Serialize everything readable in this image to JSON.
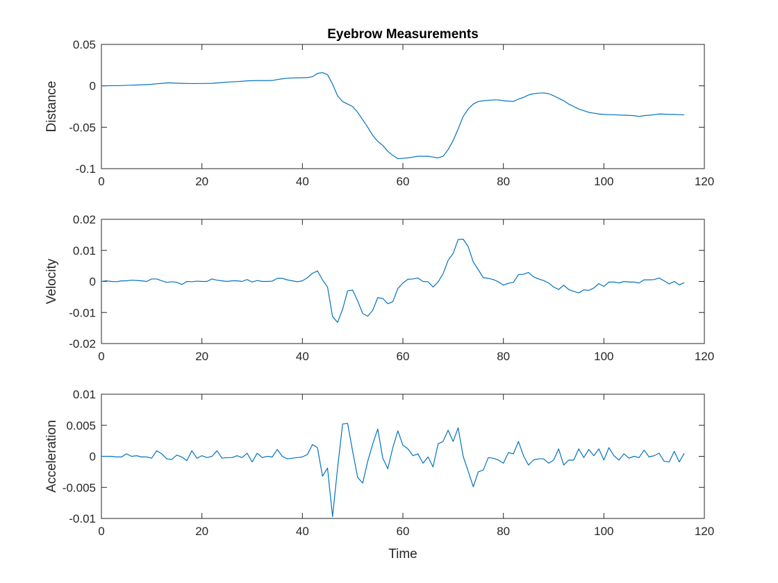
{
  "chart_data": [
    {
      "type": "line",
      "title": "Eyebrow Measurements",
      "xlabel": "",
      "ylabel": "Distance",
      "xlim": [
        0,
        120
      ],
      "ylim": [
        -0.1,
        0.05
      ],
      "xticks": [
        0,
        20,
        40,
        60,
        80,
        100,
        120
      ],
      "yticks": [
        -0.1,
        -0.05,
        0,
        0.05
      ],
      "xtick_labels": [
        "0",
        "20",
        "40",
        "60",
        "80",
        "100",
        "120"
      ],
      "ytick_labels": [
        "-0.1",
        "-0.05",
        "0",
        "0.05"
      ],
      "grid": false,
      "color": "#0072BD",
      "series": [
        {
          "x": [
            0,
            1,
            2,
            3,
            4,
            5,
            6,
            7,
            8,
            9,
            10,
            11,
            12,
            13,
            14,
            15,
            16,
            17,
            18,
            19,
            20,
            21,
            22,
            23,
            24,
            25,
            26,
            27,
            28,
            29,
            30,
            31,
            32,
            33,
            34,
            35,
            36,
            37,
            38,
            39,
            40,
            41,
            42,
            43,
            44,
            45,
            46,
            47,
            48,
            49,
            50,
            51,
            52,
            53,
            54,
            55,
            56,
            57,
            58,
            59,
            60,
            61,
            62,
            63,
            64,
            65,
            66,
            67,
            68,
            69,
            70,
            71,
            72,
            73,
            74,
            75,
            76,
            77,
            78,
            79,
            80,
            81,
            82,
            83,
            84,
            85,
            86,
            87,
            88,
            89,
            90,
            91,
            92,
            93,
            94,
            95,
            96,
            97,
            98,
            99,
            100,
            101,
            102,
            103,
            104,
            105,
            106,
            107,
            108,
            109,
            110,
            111,
            112,
            113,
            114,
            115,
            116
          ],
          "y": [
            0,
            0.0001,
            0.0002,
            0.0002,
            0.0003,
            0.0006,
            0.0008,
            0.001,
            0.0012,
            0.0015,
            0.0018,
            0.0025,
            0.003,
            0.0035,
            0.0035,
            0.0032,
            0.003,
            0.0028,
            0.0027,
            0.0028,
            0.0028,
            0.0029,
            0.003,
            0.0035,
            0.004,
            0.0045,
            0.0048,
            0.005,
            0.0055,
            0.006,
            0.0062,
            0.0063,
            0.0063,
            0.0063,
            0.0065,
            0.0075,
            0.0085,
            0.0092,
            0.0095,
            0.0097,
            0.0098,
            0.01,
            0.011,
            0.015,
            0.016,
            0.0135,
            0.002,
            -0.012,
            -0.019,
            -0.022,
            -0.025,
            -0.032,
            -0.041,
            -0.05,
            -0.06,
            -0.067,
            -0.072,
            -0.079,
            -0.084,
            -0.088,
            -0.0875,
            -0.087,
            -0.086,
            -0.085,
            -0.085,
            -0.085,
            -0.086,
            -0.087,
            -0.085,
            -0.077,
            -0.066,
            -0.052,
            -0.037,
            -0.028,
            -0.022,
            -0.019,
            -0.018,
            -0.0175,
            -0.017,
            -0.017,
            -0.018,
            -0.0185,
            -0.0188,
            -0.016,
            -0.014,
            -0.011,
            -0.0095,
            -0.0088,
            -0.0085,
            -0.0095,
            -0.012,
            -0.015,
            -0.018,
            -0.022,
            -0.025,
            -0.028,
            -0.03,
            -0.032,
            -0.033,
            -0.034,
            -0.0345,
            -0.0348,
            -0.035,
            -0.0352,
            -0.0355,
            -0.0357,
            -0.036,
            -0.037,
            -0.036,
            -0.0355,
            -0.0348,
            -0.034,
            -0.0342,
            -0.0345,
            -0.0345,
            -0.0348,
            -0.035
          ]
        }
      ]
    },
    {
      "type": "line",
      "title": "",
      "xlabel": "",
      "ylabel": "Velocity",
      "xlim": [
        0,
        120
      ],
      "ylim": [
        -0.02,
        0.02
      ],
      "xticks": [
        0,
        20,
        40,
        60,
        80,
        100,
        120
      ],
      "yticks": [
        -0.02,
        -0.01,
        0,
        0.01,
        0.02
      ],
      "xtick_labels": [
        "0",
        "20",
        "40",
        "60",
        "80",
        "100",
        "120"
      ],
      "ytick_labels": [
        "-0.02",
        "-0.01",
        "0",
        "0.01",
        "0.02"
      ],
      "grid": false,
      "color": "#0072BD",
      "series": [
        {
          "x": [
            0,
            1,
            2,
            3,
            4,
            5,
            6,
            7,
            8,
            9,
            10,
            11,
            12,
            13,
            14,
            15,
            16,
            17,
            18,
            19,
            20,
            21,
            22,
            23,
            24,
            25,
            26,
            27,
            28,
            29,
            30,
            31,
            32,
            33,
            34,
            35,
            36,
            37,
            38,
            39,
            40,
            41,
            42,
            43,
            44,
            45,
            46,
            47,
            48,
            49,
            50,
            51,
            52,
            53,
            54,
            55,
            56,
            57,
            58,
            59,
            60,
            61,
            62,
            63,
            64,
            65,
            66,
            67,
            68,
            69,
            70,
            71,
            72,
            73,
            74,
            75,
            76,
            77,
            78,
            79,
            80,
            81,
            82,
            83,
            84,
            85,
            86,
            87,
            88,
            89,
            90,
            91,
            92,
            93,
            94,
            95,
            96,
            97,
            98,
            99,
            100,
            101,
            102,
            103,
            104,
            105,
            106,
            107,
            108,
            109,
            110,
            111,
            112,
            113,
            114,
            115,
            116
          ],
          "y": [
            0,
            0.0002,
            0,
            -0.0001,
            0.0002,
            0.0002,
            0.0004,
            0.0003,
            0.0002,
            0,
            0.0008,
            0.0008,
            0.0002,
            -0.0003,
            -0.0001,
            -0.0003,
            -0.001,
            0,
            -0.0001,
            0.0001,
            0,
            0,
            0.0008,
            0.0004,
            0.0002,
            0,
            0.0002,
            0.0002,
            0,
            0.0006,
            -0.0002,
            0.0003,
            0,
            0,
            0.0001,
            0.001,
            0.001,
            0.0005,
            0.0002,
            -0.0001,
            0.0002,
            0.0012,
            0.0026,
            0.0034,
            0.0005,
            -0.0018,
            -0.0113,
            -0.0132,
            -0.009,
            -0.003,
            -0.0028,
            -0.0063,
            -0.0103,
            -0.0112,
            -0.0093,
            -0.0052,
            -0.0055,
            -0.0072,
            -0.0065,
            -0.0023,
            -0.0005,
            0.0007,
            0.0008,
            0.0011,
            0,
            -0.0001,
            -0.0018,
            -0.0002,
            0.0025,
            0.0068,
            0.009,
            0.0135,
            0.0136,
            0.0112,
            0.0063,
            0.0038,
            0.0012,
            0.001,
            0.0006,
            -0.0001,
            -0.0012,
            -0.0006,
            -0.0003,
            0.0022,
            0.0023,
            0.0029,
            0.0015,
            0.0008,
            0.0003,
            -0.0005,
            -0.0018,
            -0.0026,
            -0.0012,
            -0.0026,
            -0.0032,
            -0.0037,
            -0.0027,
            -0.0029,
            -0.0021,
            -0.0007,
            -0.0016,
            -0.0002,
            -0.0002,
            -0.0005,
            0,
            -0.0002,
            -0.0002,
            -0.0005,
            0.0005,
            0.0005,
            0.0006,
            0.0011,
            0.0002,
            -0.0008,
            0,
            -0.0011,
            -0.0004
          ]
        }
      ]
    },
    {
      "type": "line",
      "title": "",
      "xlabel": "Time",
      "ylabel": "Acceleration",
      "xlim": [
        0,
        120
      ],
      "ylim": [
        -0.01,
        0.01
      ],
      "xticks": [
        0,
        20,
        40,
        60,
        80,
        100,
        120
      ],
      "yticks": [
        -0.01,
        -0.005,
        0,
        0.005,
        0.01
      ],
      "xtick_labels": [
        "0",
        "20",
        "40",
        "60",
        "80",
        "100",
        "120"
      ],
      "ytick_labels": [
        "-0.01",
        "-0.005",
        "0",
        "0.005",
        "0.01"
      ],
      "grid": false,
      "color": "#0072BD",
      "series": [
        {
          "x": [
            0,
            1,
            2,
            3,
            4,
            5,
            6,
            7,
            8,
            9,
            10,
            11,
            12,
            13,
            14,
            15,
            16,
            17,
            18,
            19,
            20,
            21,
            22,
            23,
            24,
            25,
            26,
            27,
            28,
            29,
            30,
            31,
            32,
            33,
            34,
            35,
            36,
            37,
            38,
            39,
            40,
            41,
            42,
            43,
            44,
            45,
            46,
            47,
            48,
            49,
            50,
            51,
            52,
            53,
            54,
            55,
            56,
            57,
            58,
            59,
            60,
            61,
            62,
            63,
            64,
            65,
            66,
            67,
            68,
            69,
            70,
            71,
            72,
            73,
            74,
            75,
            76,
            77,
            78,
            79,
            80,
            81,
            82,
            83,
            84,
            85,
            86,
            87,
            88,
            89,
            90,
            91,
            92,
            93,
            94,
            95,
            96,
            97,
            98,
            99,
            100,
            101,
            102,
            103,
            104,
            105,
            106,
            107,
            108,
            109,
            110,
            111,
            112,
            113,
            114,
            115,
            116
          ],
          "y": [
            0,
            0,
            0,
            -0.0001,
            -0.0001,
            0.0004,
            0,
            0.0001,
            -0.0001,
            -0.0001,
            -0.0003,
            0.0009,
            0.0004,
            -0.0004,
            -0.0005,
            0.0002,
            -0.0001,
            -0.0007,
            0.0009,
            -0.0003,
            0.0001,
            -0.0002,
            0,
            0.0009,
            -0.0003,
            -0.0002,
            -0.0002,
            0.0001,
            -0.0002,
            0.0005,
            -0.0009,
            0.0005,
            -0.0002,
            0,
            -0.0001,
            0.0011,
            0,
            -0.0004,
            -0.0003,
            -0.0002,
            -0.0001,
            0.0003,
            0.0019,
            0.0014,
            -0.0032,
            -0.0019,
            -0.0097,
            -0.0019,
            0.0052,
            0.0053,
            0.0008,
            -0.0034,
            -0.0043,
            -0.0008,
            0.002,
            0.0044,
            -0.0003,
            -0.002,
            0.0014,
            0.0041,
            0.0018,
            0.0012,
            0.0001,
            0.0004,
            -0.0011,
            -0.0001,
            -0.0017,
            0.002,
            0.0024,
            0.0042,
            0.0024,
            0.0046,
            0,
            -0.0024,
            -0.0049,
            -0.0025,
            -0.0022,
            -0.0002,
            -0.0003,
            -0.0006,
            -0.0011,
            0.0006,
            0.0004,
            0.0024,
            0.0001,
            -0.0014,
            -0.0006,
            -0.0004,
            -0.0004,
            -0.0011,
            -0.0006,
            0.0012,
            -0.0014,
            -0.0006,
            -0.0006,
            0.0012,
            -0.0002,
            0.0011,
            0.0001,
            0.0012,
            -0.0006,
            0.0014,
            0.0001,
            -0.0006,
            0.0004,
            -0.0003,
            0,
            -0.0002,
            0.001,
            -0.0001,
            0.0001,
            0.0005,
            -0.0008,
            -0.0009,
            0.0008,
            -0.0009,
            0.0005
          ]
        }
      ]
    }
  ]
}
